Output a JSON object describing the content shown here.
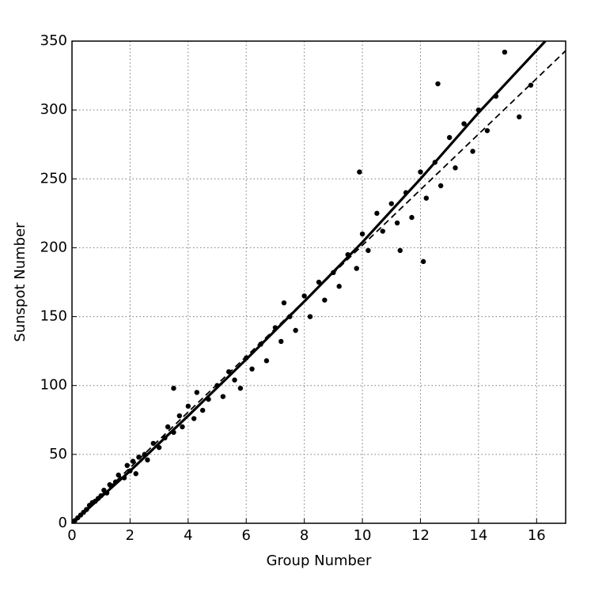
{
  "chart_data": {
    "type": "scatter",
    "xlabel": "Group Number",
    "ylabel": "Sunspot Number",
    "xlim": [
      0,
      17
    ],
    "ylim": [
      0,
      350
    ],
    "xticks": [
      0,
      2,
      4,
      6,
      8,
      10,
      12,
      14,
      16
    ],
    "yticks": [
      0,
      50,
      100,
      150,
      200,
      250,
      300,
      350
    ],
    "grid": true,
    "points": {
      "color": "#000000",
      "x": [
        0.1,
        0.2,
        0.3,
        0.4,
        0.5,
        0.6,
        0.7,
        0.8,
        0.9,
        1.0,
        1.1,
        1.2,
        1.3,
        1.5,
        1.6,
        1.8,
        1.9,
        2.0,
        2.1,
        2.2,
        2.3,
        2.5,
        2.6,
        2.8,
        3.0,
        3.2,
        3.3,
        3.5,
        3.7,
        3.8,
        4.0,
        4.2,
        4.3,
        4.5,
        4.7,
        5.0,
        5.2,
        5.4,
        5.6,
        5.8,
        6.0,
        6.2,
        6.5,
        6.7,
        7.0,
        7.2,
        7.5,
        7.7,
        8.0,
        8.2,
        8.5,
        8.7,
        9.0,
        9.2,
        9.5,
        9.8,
        10.0,
        10.2,
        10.5,
        10.7,
        11.0,
        11.2,
        11.5,
        11.7,
        12.0,
        12.2,
        12.5,
        12.7,
        13.0,
        13.2,
        13.5,
        13.8,
        14.0,
        14.3,
        14.6,
        14.9,
        15.4,
        15.8,
        12.6,
        9.9,
        12.1,
        7.3,
        3.5,
        11.3
      ],
      "values": [
        2,
        4,
        6,
        8,
        10,
        13,
        15,
        16,
        18,
        20,
        24,
        22,
        28,
        30,
        35,
        33,
        42,
        38,
        45,
        36,
        48,
        50,
        46,
        58,
        55,
        62,
        70,
        66,
        78,
        70,
        85,
        76,
        95,
        82,
        90,
        100,
        92,
        110,
        104,
        98,
        120,
        112,
        130,
        118,
        142,
        132,
        150,
        140,
        165,
        150,
        175,
        162,
        182,
        172,
        195,
        185,
        210,
        198,
        225,
        212,
        232,
        218,
        240,
        222,
        255,
        236,
        262,
        245,
        280,
        258,
        290,
        270,
        300,
        285,
        310,
        342,
        295,
        318,
        319,
        255,
        190,
        160,
        98,
        198
      ]
    },
    "lines": [
      {
        "style": "solid",
        "color": "#000000",
        "x": [
          0,
          2,
          4,
          6,
          8,
          10,
          12,
          14,
          16.3
        ],
        "values": [
          0,
          38,
          78,
          119,
          161,
          204,
          250,
          298,
          350
        ]
      },
      {
        "style": "dashed",
        "color": "#000000",
        "x": [
          0,
          17
        ],
        "values": [
          0,
          343
        ]
      }
    ]
  }
}
